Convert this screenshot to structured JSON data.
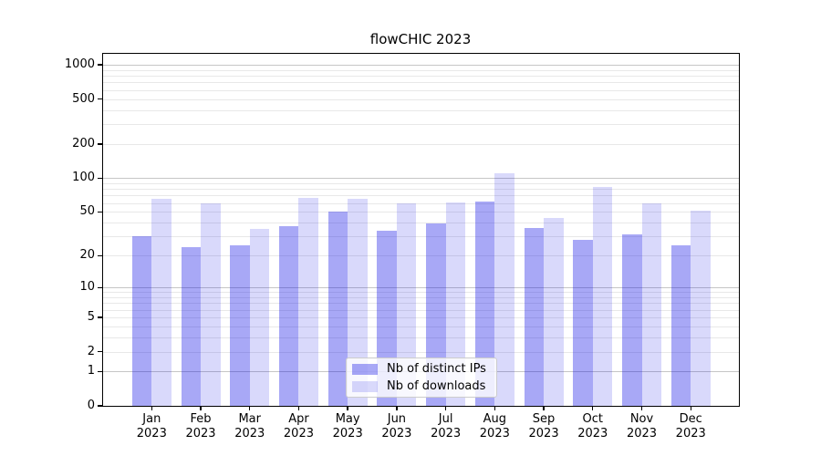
{
  "chart_data": {
    "type": "bar",
    "title": "flowCHIC 2023",
    "categories": [
      "Jan",
      "Feb",
      "Mar",
      "Apr",
      "May",
      "Jun",
      "Jul",
      "Aug",
      "Sep",
      "Oct",
      "Nov",
      "Dec"
    ],
    "year_label": "2023",
    "series": [
      {
        "name": "Nb of distinct IPs",
        "color": "rgba(0,0,230,0.34)",
        "values": [
          30,
          24,
          25,
          37,
          50,
          34,
          39,
          62,
          36,
          28,
          31,
          25
        ]
      },
      {
        "name": "Nb of downloads",
        "color": "rgba(0,0,230,0.15)",
        "values": [
          65,
          60,
          35,
          67,
          65,
          60,
          61,
          110,
          44,
          83,
          60,
          51
        ]
      }
    ],
    "y_axis": {
      "scale": "log10(1+v)",
      "tick_values": [
        0,
        1,
        2,
        5,
        10,
        20,
        50,
        100,
        200,
        500,
        1000
      ],
      "major_gridlines": [
        1,
        10,
        100,
        1000
      ],
      "minor_gridlines": [
        2,
        3,
        4,
        5,
        6,
        7,
        8,
        9,
        20,
        30,
        40,
        50,
        60,
        70,
        80,
        90,
        200,
        300,
        400,
        500,
        600,
        700,
        800,
        900
      ],
      "ylim": [
        0,
        1270
      ]
    },
    "legend": {
      "position": "lower center"
    },
    "grid": "horizontal",
    "colors": {
      "major_grid": "#c6c6c6",
      "minor_grid": "#e8e8e8",
      "spine": "#000000",
      "text": "#000000",
      "background": "#ffffff"
    }
  }
}
